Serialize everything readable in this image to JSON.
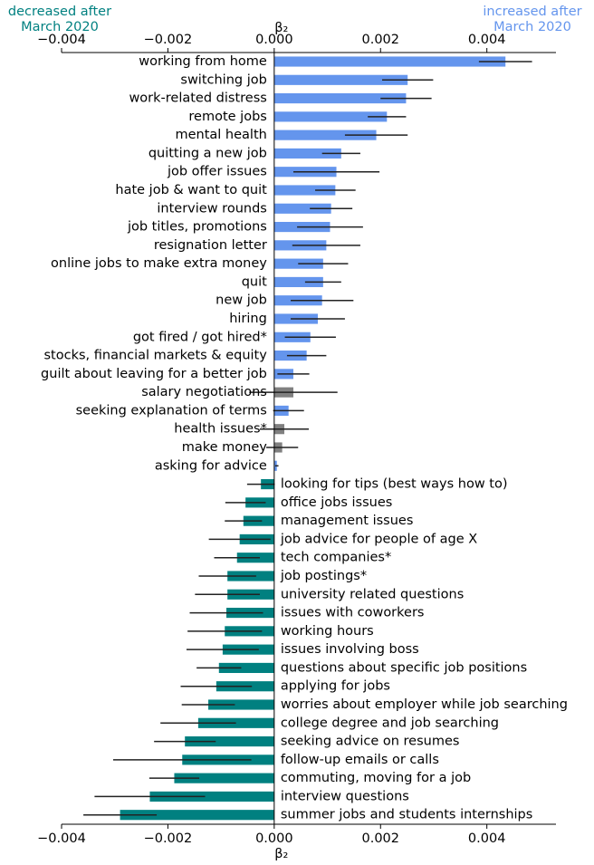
{
  "chart_data": {
    "type": "barh",
    "xlabel": "β₂",
    "annotations": [
      {
        "lines": [
          "decreased after",
          "March 2020"
        ],
        "color": "#008080"
      },
      {
        "lines": [
          "increased after",
          "March 2020"
        ],
        "color": "#6495ed"
      }
    ],
    "xlim": [
      -0.004,
      0.0053
    ],
    "xticks": [
      {
        "value": -0.004,
        "label": "−0.004"
      },
      {
        "value": -0.002,
        "label": "−0.002"
      },
      {
        "value": 0,
        "label": "0.000"
      },
      0.002,
      0.004
    ],
    "categories": [
      "working from home",
      "switching job",
      "work-related distress",
      "remote jobs",
      "mental health",
      "quitting a new job",
      "job offer issues",
      "hate job & want to quit",
      "interview rounds",
      "job titles, promotions",
      "resignation letter",
      "online jobs to make extra money",
      "quit",
      "new job",
      "hiring",
      "got fired / got hired*",
      "stocks, financial markets & equity",
      "guilt about leaving for a better job",
      "salary negotiations",
      "seeking explanation of terms",
      "health issues*",
      "make money",
      "asking for advice",
      "looking for tips (best ways how to)",
      "office jobs issues",
      "management issues",
      "job advice for people of age X",
      "tech companies*",
      "job postings*",
      "university related questions",
      "issues with coworkers",
      "working hours",
      "issues involving boss",
      "questions about specific job positions",
      "applying for jobs",
      "worries about employer while job searching",
      "college degree and job searching",
      "seeking advice on resumes",
      "follow-up emails or calls",
      "commuting, moving for a job",
      "interview questions",
      "summer jobs and students internships"
    ],
    "values": [
      0.00435,
      0.00251,
      0.00248,
      0.00212,
      0.00192,
      0.00126,
      0.00117,
      0.00115,
      0.00107,
      0.00105,
      0.00098,
      0.00092,
      0.00092,
      0.0009,
      0.00082,
      0.00068,
      0.00061,
      0.00036,
      0.00036,
      0.00027,
      0.00019,
      0.00015,
      5e-05,
      -0.00025,
      -0.00054,
      -0.00058,
      -0.00065,
      -0.0007,
      -0.00088,
      -0.00088,
      -0.0009,
      -0.00093,
      -0.00097,
      -0.00104,
      -0.00109,
      -0.00124,
      -0.00143,
      -0.00168,
      -0.00173,
      -0.00188,
      -0.00234,
      -0.0029
    ],
    "errors": [
      0.0005,
      0.00048,
      0.00048,
      0.00036,
      0.00059,
      0.00036,
      0.00081,
      0.00038,
      0.0004,
      0.00062,
      0.00064,
      0.00047,
      0.00034,
      0.00059,
      0.00051,
      0.00048,
      0.00037,
      0.0003,
      0.00083,
      0.00029,
      0.00046,
      0.0003,
      3e-05,
      0.00026,
      0.00038,
      0.00035,
      0.00058,
      0.00043,
      0.00054,
      0.00061,
      0.00069,
      0.0007,
      0.00068,
      0.00042,
      0.00067,
      0.0005,
      0.00071,
      0.00058,
      0.0013,
      0.00047,
      0.00104,
      0.00069
    ],
    "colors": [
      "#6495ed",
      "#6495ed",
      "#6495ed",
      "#6495ed",
      "#6495ed",
      "#6495ed",
      "#6495ed",
      "#6495ed",
      "#6495ed",
      "#6495ed",
      "#6495ed",
      "#6495ed",
      "#6495ed",
      "#6495ed",
      "#6495ed",
      "#6495ed",
      "#6495ed",
      "#6495ed",
      "#808080",
      "#6495ed",
      "#808080",
      "#808080",
      "#6495ed",
      "#008080",
      "#008080",
      "#008080",
      "#008080",
      "#008080",
      "#008080",
      "#008080",
      "#008080",
      "#008080",
      "#008080",
      "#008080",
      "#008080",
      "#008080",
      "#008080",
      "#008080",
      "#008080",
      "#008080",
      "#008080",
      "#008080"
    ]
  }
}
